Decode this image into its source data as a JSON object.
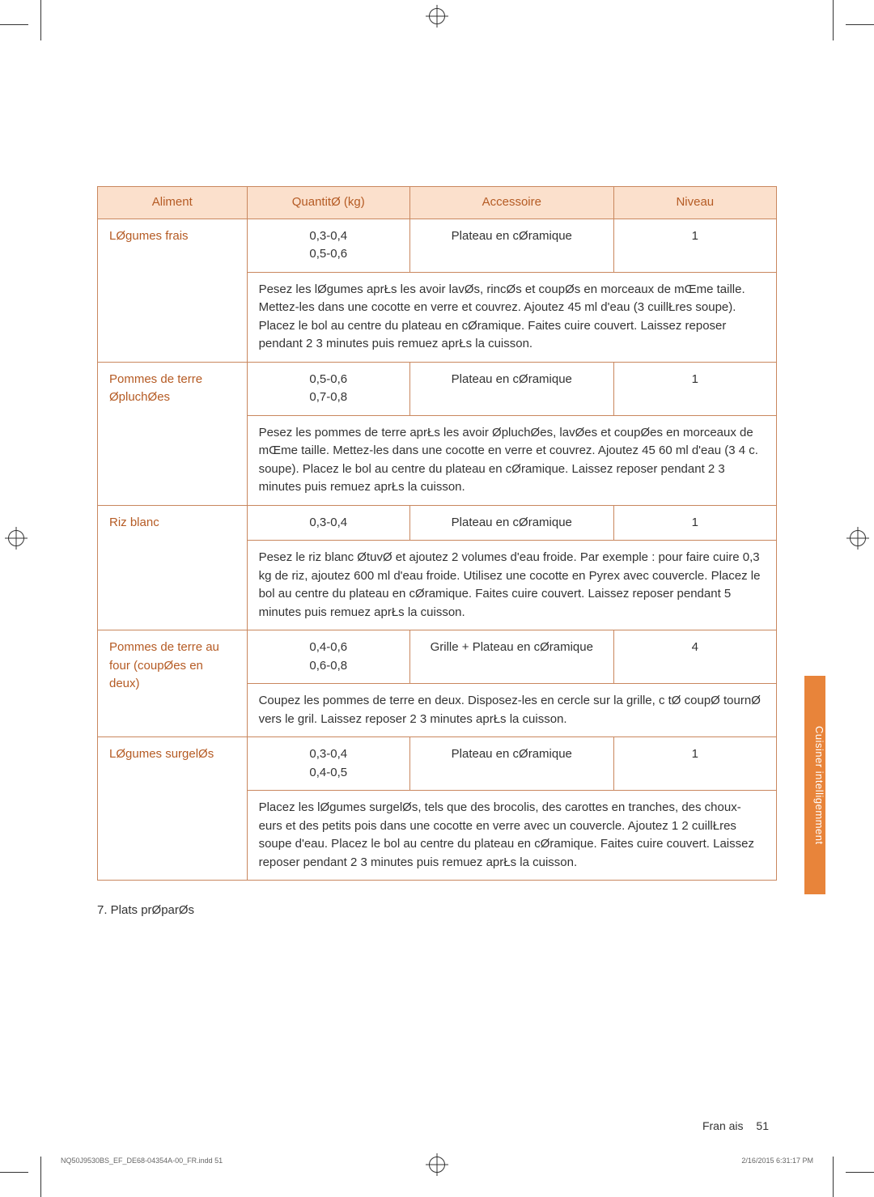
{
  "table": {
    "headers": {
      "food": "Aliment",
      "qty": "QuantitØ (kg)",
      "accessory": "Accessoire",
      "level": "Niveau"
    },
    "header_bg": "#fbe0cc",
    "header_color": "#b55b24",
    "border_color": "#c9875e",
    "rows": [
      {
        "food": "LØgumes frais",
        "qty_line1": "0,3-0,4",
        "qty_line2": "0,5-0,6",
        "accessory": "Plateau en cØramique",
        "level": "1",
        "instructions": "Pesez les lØgumes aprŁs les avoir lavØs, rincØs et coupØs en morceaux de mŒme taille. Mettez-les dans une cocotte en verre et couvrez. Ajoutez 45 ml d'eau (3 cuillŁres   soupe). Placez le bol au centre du plateau en cØramique. Faites cuire   couvert. Laissez reposer pendant 2   3 minutes puis remuez aprŁs la cuisson."
      },
      {
        "food": "Pommes de terre ØpluchØes",
        "qty_line1": "0,5-0,6",
        "qty_line2": "0,7-0,8",
        "accessory": "Plateau en cØramique",
        "level": "1",
        "instructions": "Pesez les pommes de terre aprŁs les avoir ØpluchØes, lavØes et coupØes en morceaux de mŒme taille. Mettez-les dans une cocotte en verre et couvrez. Ajoutez 45   60 ml d'eau (3   4 c.   soupe). Placez le bol au centre du plateau en cØramique. Laissez reposer pendant 2   3 minutes puis remuez aprŁs la cuisson."
      },
      {
        "food": "Riz blanc",
        "qty_line1": "0,3-0,4",
        "qty_line2": "",
        "accessory": "Plateau en cØramique",
        "level": "1",
        "instructions": "Pesez le riz blanc ØtuvØ et ajoutez 2 volumes d'eau froide. Par exemple : pour faire cuire 0,3 kg de riz, ajoutez 600 ml d'eau froide. Utilisez une cocotte en Pyrex avec couvercle. Placez le bol au centre du plateau en cØramique. Faites cuire   couvert. Laissez reposer pendant 5 minutes puis remuez aprŁs la cuisson."
      },
      {
        "food": "Pommes de terre au four (coupØes en deux)",
        "qty_line1": "0,4-0,6",
        "qty_line2": "0,6-0,8",
        "accessory": "Grille + Plateau en cØramique",
        "level": "4",
        "instructions": "Coupez les pommes de terre en deux. Disposez-les en cercle sur la grille, c tØ coupØ tournØ vers le gril. Laissez reposer 2   3 minutes aprŁs la cuisson."
      },
      {
        "food": "LØgumes surgelØs",
        "qty_line1": "0,3-0,4",
        "qty_line2": "0,4-0,5",
        "accessory": "Plateau en cØramique",
        "level": "1",
        "instructions": "Placez les lØgumes surgelØs, tels que des brocolis, des carottes en tranches, des choux- eurs et des petits pois dans une cocotte en verre avec un couvercle. Ajoutez 1   2 cuillŁres   soupe d'eau. Placez le bol au centre du plateau en cØramique. Faites cuire   couvert. Laissez reposer pendant 2   3 minutes puis remuez aprŁs la cuisson."
      }
    ]
  },
  "section_label": "7. Plats prØparØs",
  "side_tab": "Cuisiner intelligemment",
  "side_tab_bg": "#e8843a",
  "footer": {
    "language": "Fran ais",
    "page": "51"
  },
  "print_footer": {
    "file": "NQ50J9530BS_EF_DE68-04354A-00_FR.indd   51",
    "timestamp": "2/16/2015   6:31:17 PM"
  }
}
